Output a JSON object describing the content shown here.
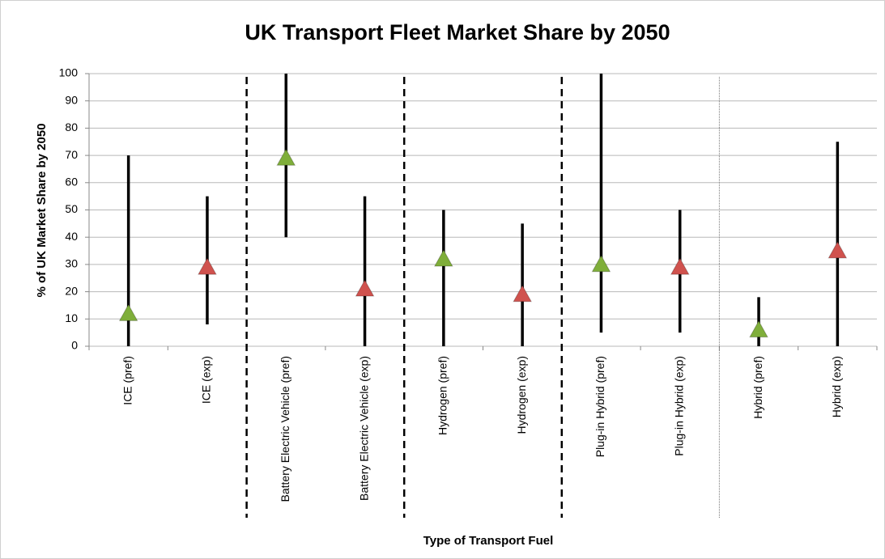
{
  "chart_data": {
    "type": "range",
    "title": "UK Transport Fleet Market Share by 2050",
    "y_label": "% of UK Market Share by 2050",
    "x_label": "Type of Transport Fuel",
    "categories": [
      "ICE (pref)",
      "ICE (exp)",
      "Battery Electric Vehicle (pref)",
      "Battery Electric Vehicle (exp)",
      "Hydrogen (pref)",
      "Hydrogen (exp)",
      "Plug-in Hybrid (pref)",
      "Plug-in Hybrid (exp)",
      "Hybrid (pref)",
      "Hybrid (exp)"
    ],
    "lows": [
      0,
      8,
      40,
      0,
      0,
      0,
      5,
      5,
      0,
      0
    ],
    "highs": [
      70,
      55,
      100,
      55,
      50,
      45,
      100,
      50,
      18,
      75
    ],
    "values": [
      12,
      29,
      69,
      21,
      32,
      19,
      30,
      29,
      6,
      35
    ],
    "marker_colors": [
      "#7fae3a",
      "#d0524e",
      "#7fae3a",
      "#d0524e",
      "#7fae3a",
      "#d0524e",
      "#7fae3a",
      "#d0524e",
      "#7fae3a",
      "#d0524e"
    ],
    "ylim": [
      0,
      100
    ],
    "yticks": [
      0,
      10,
      20,
      30,
      40,
      50,
      60,
      70,
      80,
      90,
      100
    ],
    "grid": true
  }
}
